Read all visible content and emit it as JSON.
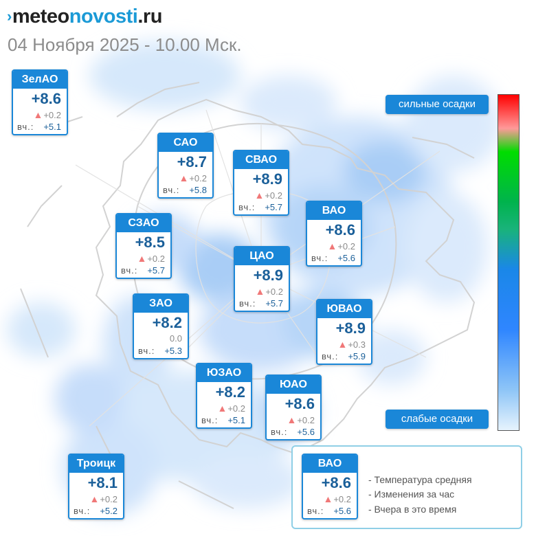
{
  "brand": {
    "mark": "›",
    "part1": "meteo",
    "part2": "novosti",
    "part3": ".ru"
  },
  "date": "04 Ноября 2025 - 10.00 Мск.",
  "colors": {
    "accent": "#1a87d8",
    "temperature": "#1a5f99",
    "rise": "#f07878"
  },
  "yesterday_label": "вч.:",
  "districts": [
    {
      "name": "ЗелАО",
      "temp": "+8.6",
      "change_icon": "up-triangle",
      "change": "+0.2",
      "yesterday": "+5.1"
    },
    {
      "name": "САО",
      "temp": "+8.7",
      "change_icon": "up-triangle",
      "change": "+0.2",
      "yesterday": "+5.8"
    },
    {
      "name": "СВАО",
      "temp": "+8.9",
      "change_icon": "up-triangle",
      "change": "+0.2",
      "yesterday": "+5.7"
    },
    {
      "name": "ВАО",
      "temp": "+8.6",
      "change_icon": "up-triangle",
      "change": "+0.2",
      "yesterday": "+5.6"
    },
    {
      "name": "СЗАО",
      "temp": "+8.5",
      "change_icon": "up-triangle",
      "change": "+0.2",
      "yesterday": "+5.7"
    },
    {
      "name": "ЦАО",
      "temp": "+8.9",
      "change_icon": "up-triangle",
      "change": "+0.2",
      "yesterday": "+5.7"
    },
    {
      "name": "ЗАО",
      "temp": "+8.2",
      "change_icon": "",
      "change": "0.0",
      "yesterday": "+5.3"
    },
    {
      "name": "ЮВАО",
      "temp": "+8.9",
      "change_icon": "up-triangle",
      "change": "+0.3",
      "yesterday": "+5.9"
    },
    {
      "name": "ЮЗАО",
      "temp": "+8.2",
      "change_icon": "up-triangle",
      "change": "+0.2",
      "yesterday": "+5.1"
    },
    {
      "name": "ЮАО",
      "temp": "+8.6",
      "change_icon": "up-triangle",
      "change": "+0.2",
      "yesterday": "+5.6"
    },
    {
      "name": "Троицк",
      "temp": "+8.1",
      "change_icon": "up-triangle",
      "change": "+0.2",
      "yesterday": "+5.2"
    }
  ],
  "scale": {
    "top_label": "сильные осадки",
    "bottom_label": "слабые осадки"
  },
  "legend": {
    "example": {
      "name": "ВАО",
      "temp": "+8.6",
      "change_icon": "up-triangle",
      "change": "+0.2",
      "yesterday": "+5.6"
    },
    "items": [
      "- Температура средняя",
      "- Изменения за час",
      "- Вчера в это время"
    ]
  }
}
